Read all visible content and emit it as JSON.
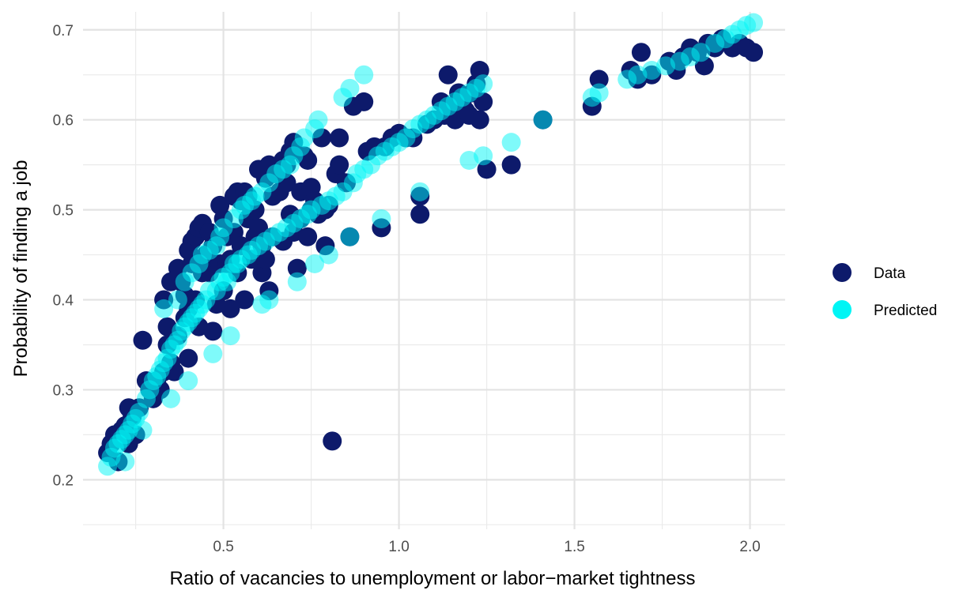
{
  "chart_data": {
    "type": "scatter",
    "title": "",
    "xlabel": "Ratio of vacancies to unemployment or labor−market tightness",
    "ylabel": "Probability of finding a job",
    "xlim": [
      0.1,
      2.1
    ],
    "ylim": [
      0.145,
      0.72
    ],
    "x_ticks": [
      0.5,
      1.0,
      1.5,
      2.0
    ],
    "x_tick_labels": [
      "0.5",
      "1.0",
      "1.5",
      "2.0"
    ],
    "y_ticks": [
      0.2,
      0.3,
      0.4,
      0.5,
      0.6,
      0.7
    ],
    "y_tick_labels": [
      "0.2",
      "0.3",
      "0.4",
      "0.5",
      "0.6",
      "0.7"
    ],
    "grid": true,
    "legend_position": "right",
    "series": [
      {
        "name": "Data",
        "color": "#0d1a6b",
        "opacity": 1.0,
        "points": [
          [
            0.17,
            0.23
          ],
          [
            0.18,
            0.24
          ],
          [
            0.19,
            0.25
          ],
          [
            0.2,
            0.22
          ],
          [
            0.21,
            0.255
          ],
          [
            0.22,
            0.26
          ],
          [
            0.23,
            0.28
          ],
          [
            0.23,
            0.24
          ],
          [
            0.24,
            0.27
          ],
          [
            0.25,
            0.25
          ],
          [
            0.26,
            0.28
          ],
          [
            0.27,
            0.355
          ],
          [
            0.28,
            0.31
          ],
          [
            0.29,
            0.3
          ],
          [
            0.3,
            0.29
          ],
          [
            0.31,
            0.31
          ],
          [
            0.32,
            0.3
          ],
          [
            0.33,
            0.4
          ],
          [
            0.33,
            0.32
          ],
          [
            0.34,
            0.37
          ],
          [
            0.34,
            0.35
          ],
          [
            0.35,
            0.42
          ],
          [
            0.35,
            0.33
          ],
          [
            0.36,
            0.36
          ],
          [
            0.36,
            0.32
          ],
          [
            0.37,
            0.435
          ],
          [
            0.37,
            0.36
          ],
          [
            0.38,
            0.42
          ],
          [
            0.39,
            0.38
          ],
          [
            0.39,
            0.405
          ],
          [
            0.4,
            0.455
          ],
          [
            0.4,
            0.39
          ],
          [
            0.4,
            0.335
          ],
          [
            0.41,
            0.44
          ],
          [
            0.41,
            0.465
          ],
          [
            0.42,
            0.47
          ],
          [
            0.42,
            0.4
          ],
          [
            0.43,
            0.48
          ],
          [
            0.43,
            0.37
          ],
          [
            0.44,
            0.485
          ],
          [
            0.44,
            0.43
          ],
          [
            0.45,
            0.45
          ],
          [
            0.46,
            0.475
          ],
          [
            0.46,
            0.43
          ],
          [
            0.47,
            0.46
          ],
          [
            0.47,
            0.365
          ],
          [
            0.48,
            0.44
          ],
          [
            0.48,
            0.395
          ],
          [
            0.49,
            0.505
          ],
          [
            0.49,
            0.44
          ],
          [
            0.5,
            0.49
          ],
          [
            0.5,
            0.41
          ],
          [
            0.51,
            0.47
          ],
          [
            0.51,
            0.44
          ],
          [
            0.52,
            0.445
          ],
          [
            0.52,
            0.39
          ],
          [
            0.53,
            0.515
          ],
          [
            0.53,
            0.475
          ],
          [
            0.54,
            0.52
          ],
          [
            0.54,
            0.43
          ],
          [
            0.55,
            0.51
          ],
          [
            0.55,
            0.46
          ],
          [
            0.56,
            0.52
          ],
          [
            0.56,
            0.4
          ],
          [
            0.57,
            0.515
          ],
          [
            0.57,
            0.49
          ],
          [
            0.58,
            0.5
          ],
          [
            0.58,
            0.445
          ],
          [
            0.59,
            0.5
          ],
          [
            0.59,
            0.47
          ],
          [
            0.6,
            0.545
          ],
          [
            0.6,
            0.48
          ],
          [
            0.61,
            0.46
          ],
          [
            0.61,
            0.43
          ],
          [
            0.62,
            0.535
          ],
          [
            0.62,
            0.445
          ],
          [
            0.63,
            0.55
          ],
          [
            0.63,
            0.41
          ],
          [
            0.64,
            0.515
          ],
          [
            0.64,
            0.47
          ],
          [
            0.65,
            0.54
          ],
          [
            0.66,
            0.52
          ],
          [
            0.67,
            0.555
          ],
          [
            0.67,
            0.465
          ],
          [
            0.68,
            0.55
          ],
          [
            0.68,
            0.53
          ],
          [
            0.69,
            0.565
          ],
          [
            0.69,
            0.495
          ],
          [
            0.7,
            0.575
          ],
          [
            0.7,
            0.475
          ],
          [
            0.71,
            0.435
          ],
          [
            0.72,
            0.52
          ],
          [
            0.72,
            0.49
          ],
          [
            0.73,
            0.56
          ],
          [
            0.74,
            0.555
          ],
          [
            0.74,
            0.47
          ],
          [
            0.75,
            0.525
          ],
          [
            0.75,
            0.5
          ],
          [
            0.76,
            0.51
          ],
          [
            0.77,
            0.495
          ],
          [
            0.78,
            0.58
          ],
          [
            0.79,
            0.5
          ],
          [
            0.79,
            0.46
          ],
          [
            0.8,
            0.505
          ],
          [
            0.81,
            0.243
          ],
          [
            0.82,
            0.54
          ],
          [
            0.83,
            0.55
          ],
          [
            0.83,
            0.58
          ],
          [
            0.85,
            0.53
          ],
          [
            0.86,
            0.47
          ],
          [
            0.87,
            0.615
          ],
          [
            0.9,
            0.62
          ],
          [
            0.91,
            0.565
          ],
          [
            0.93,
            0.57
          ],
          [
            0.95,
            0.48
          ],
          [
            0.96,
            0.57
          ],
          [
            0.98,
            0.58
          ],
          [
            1.0,
            0.585
          ],
          [
            1.02,
            0.58
          ],
          [
            1.04,
            0.58
          ],
          [
            1.06,
            0.515
          ],
          [
            1.06,
            0.495
          ],
          [
            1.08,
            0.595
          ],
          [
            1.1,
            0.6
          ],
          [
            1.12,
            0.62
          ],
          [
            1.13,
            0.605
          ],
          [
            1.14,
            0.65
          ],
          [
            1.15,
            0.615
          ],
          [
            1.16,
            0.6
          ],
          [
            1.17,
            0.63
          ],
          [
            1.18,
            0.62
          ],
          [
            1.19,
            0.61
          ],
          [
            1.2,
            0.605
          ],
          [
            1.21,
            0.63
          ],
          [
            1.22,
            0.64
          ],
          [
            1.23,
            0.655
          ],
          [
            1.23,
            0.6
          ],
          [
            1.24,
            0.62
          ],
          [
            1.25,
            0.545
          ],
          [
            1.32,
            0.55
          ],
          [
            1.41,
            0.6
          ],
          [
            1.55,
            0.615
          ],
          [
            1.57,
            0.645
          ],
          [
            1.66,
            0.655
          ],
          [
            1.68,
            0.645
          ],
          [
            1.69,
            0.675
          ],
          [
            1.72,
            0.65
          ],
          [
            1.77,
            0.665
          ],
          [
            1.79,
            0.655
          ],
          [
            1.81,
            0.67
          ],
          [
            1.83,
            0.68
          ],
          [
            1.85,
            0.675
          ],
          [
            1.87,
            0.66
          ],
          [
            1.88,
            0.685
          ],
          [
            1.9,
            0.68
          ],
          [
            1.92,
            0.69
          ],
          [
            1.95,
            0.68
          ],
          [
            1.97,
            0.685
          ],
          [
            1.99,
            0.68
          ],
          [
            2.01,
            0.675
          ]
        ]
      },
      {
        "name": "Predicted",
        "color": "#00f5f5",
        "opacity": 0.5,
        "points": [
          [
            0.17,
            0.215
          ],
          [
            0.18,
            0.225
          ],
          [
            0.19,
            0.235
          ],
          [
            0.2,
            0.24
          ],
          [
            0.21,
            0.245
          ],
          [
            0.22,
            0.25
          ],
          [
            0.22,
            0.22
          ],
          [
            0.23,
            0.255
          ],
          [
            0.24,
            0.262
          ],
          [
            0.25,
            0.268
          ],
          [
            0.26,
            0.275
          ],
          [
            0.27,
            0.255
          ],
          [
            0.28,
            0.29
          ],
          [
            0.29,
            0.3
          ],
          [
            0.3,
            0.31
          ],
          [
            0.31,
            0.315
          ],
          [
            0.32,
            0.322
          ],
          [
            0.33,
            0.33
          ],
          [
            0.33,
            0.39
          ],
          [
            0.34,
            0.335
          ],
          [
            0.35,
            0.345
          ],
          [
            0.35,
            0.29
          ],
          [
            0.36,
            0.35
          ],
          [
            0.37,
            0.4
          ],
          [
            0.37,
            0.355
          ],
          [
            0.38,
            0.365
          ],
          [
            0.39,
            0.42
          ],
          [
            0.39,
            0.37
          ],
          [
            0.4,
            0.375
          ],
          [
            0.4,
            0.31
          ],
          [
            0.41,
            0.43
          ],
          [
            0.41,
            0.38
          ],
          [
            0.42,
            0.385
          ],
          [
            0.43,
            0.44
          ],
          [
            0.43,
            0.39
          ],
          [
            0.44,
            0.45
          ],
          [
            0.44,
            0.395
          ],
          [
            0.45,
            0.4
          ],
          [
            0.46,
            0.455
          ],
          [
            0.46,
            0.41
          ],
          [
            0.47,
            0.34
          ],
          [
            0.48,
            0.46
          ],
          [
            0.48,
            0.41
          ],
          [
            0.49,
            0.47
          ],
          [
            0.49,
            0.42
          ],
          [
            0.5,
            0.48
          ],
          [
            0.5,
            0.425
          ],
          [
            0.51,
            0.42
          ],
          [
            0.52,
            0.43
          ],
          [
            0.52,
            0.36
          ],
          [
            0.53,
            0.49
          ],
          [
            0.53,
            0.44
          ],
          [
            0.54,
            0.44
          ],
          [
            0.55,
            0.5
          ],
          [
            0.55,
            0.445
          ],
          [
            0.56,
            0.505
          ],
          [
            0.57,
            0.45
          ],
          [
            0.58,
            0.51
          ],
          [
            0.58,
            0.455
          ],
          [
            0.59,
            0.515
          ],
          [
            0.6,
            0.46
          ],
          [
            0.61,
            0.52
          ],
          [
            0.61,
            0.395
          ],
          [
            0.62,
            0.465
          ],
          [
            0.63,
            0.53
          ],
          [
            0.63,
            0.4
          ],
          [
            0.64,
            0.47
          ],
          [
            0.65,
            0.54
          ],
          [
            0.66,
            0.475
          ],
          [
            0.67,
            0.545
          ],
          [
            0.68,
            0.48
          ],
          [
            0.69,
            0.55
          ],
          [
            0.7,
            0.56
          ],
          [
            0.7,
            0.485
          ],
          [
            0.71,
            0.42
          ],
          [
            0.72,
            0.57
          ],
          [
            0.72,
            0.49
          ],
          [
            0.73,
            0.58
          ],
          [
            0.74,
            0.495
          ],
          [
            0.75,
            0.5
          ],
          [
            0.76,
            0.59
          ],
          [
            0.76,
            0.44
          ],
          [
            0.77,
            0.6
          ],
          [
            0.78,
            0.505
          ],
          [
            0.8,
            0.51
          ],
          [
            0.8,
            0.45
          ],
          [
            0.82,
            0.515
          ],
          [
            0.84,
            0.625
          ],
          [
            0.84,
            0.52
          ],
          [
            0.86,
            0.635
          ],
          [
            0.86,
            0.47
          ],
          [
            0.87,
            0.53
          ],
          [
            0.88,
            0.54
          ],
          [
            0.9,
            0.65
          ],
          [
            0.9,
            0.545
          ],
          [
            0.92,
            0.55
          ],
          [
            0.94,
            0.56
          ],
          [
            0.95,
            0.49
          ],
          [
            0.96,
            0.565
          ],
          [
            0.98,
            0.57
          ],
          [
            1.0,
            0.575
          ],
          [
            1.02,
            0.58
          ],
          [
            1.04,
            0.59
          ],
          [
            1.06,
            0.52
          ],
          [
            1.06,
            0.595
          ],
          [
            1.08,
            0.6
          ],
          [
            1.1,
            0.605
          ],
          [
            1.12,
            0.61
          ],
          [
            1.14,
            0.615
          ],
          [
            1.16,
            0.62
          ],
          [
            1.18,
            0.625
          ],
          [
            1.2,
            0.555
          ],
          [
            1.2,
            0.63
          ],
          [
            1.22,
            0.635
          ],
          [
            1.24,
            0.56
          ],
          [
            1.24,
            0.64
          ],
          [
            1.32,
            0.575
          ],
          [
            1.41,
            0.6
          ],
          [
            1.55,
            0.625
          ],
          [
            1.57,
            0.63
          ],
          [
            1.65,
            0.645
          ],
          [
            1.68,
            0.65
          ],
          [
            1.72,
            0.655
          ],
          [
            1.76,
            0.66
          ],
          [
            1.8,
            0.665
          ],
          [
            1.83,
            0.67
          ],
          [
            1.86,
            0.675
          ],
          [
            1.9,
            0.685
          ],
          [
            1.93,
            0.69
          ],
          [
            1.95,
            0.695
          ],
          [
            1.97,
            0.7
          ],
          [
            1.99,
            0.705
          ],
          [
            2.01,
            0.708
          ]
        ]
      }
    ]
  }
}
